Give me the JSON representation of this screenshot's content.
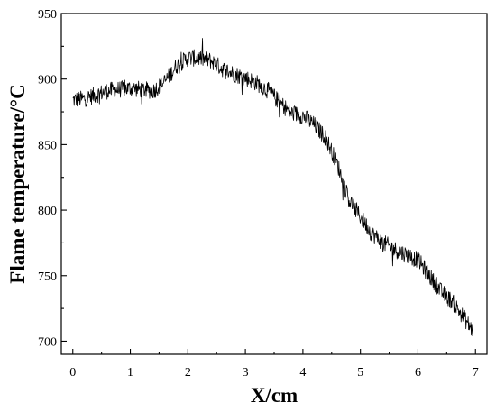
{
  "chart_data": {
    "type": "line",
    "title": "",
    "xlabel": "X/cm",
    "ylabel": "Flame temperature/°C",
    "xlim": [
      -0.2,
      7.2
    ],
    "ylim": [
      690,
      950
    ],
    "x_ticks": [
      0,
      1,
      2,
      3,
      4,
      5,
      6,
      7
    ],
    "y_ticks": [
      700,
      750,
      800,
      850,
      900,
      950
    ],
    "grid": false,
    "legend": "none",
    "line_color": "#000000",
    "series": [
      {
        "x": [
          0,
          0.2,
          0.4,
          0.6,
          0.8,
          1.0,
          1.2,
          1.4,
          1.6,
          1.8,
          2.0,
          2.2,
          2.4,
          2.6,
          2.8,
          3.0,
          3.2,
          3.4,
          3.6,
          3.8,
          4.0,
          4.2,
          4.4,
          4.6,
          4.8,
          5.0,
          5.2,
          5.4,
          5.6,
          5.8,
          6.0,
          6.2,
          6.4,
          6.6,
          6.8,
          6.95
        ],
        "values": [
          884,
          885,
          888,
          891,
          892,
          893,
          892,
          891,
          898,
          910,
          916,
          916,
          914,
          908,
          904,
          901,
          897,
          891,
          882,
          874,
          872,
          865,
          855,
          835,
          808,
          795,
          782,
          775,
          770,
          766,
          762,
          750,
          738,
          730,
          718,
          708
        ]
      }
    ]
  }
}
